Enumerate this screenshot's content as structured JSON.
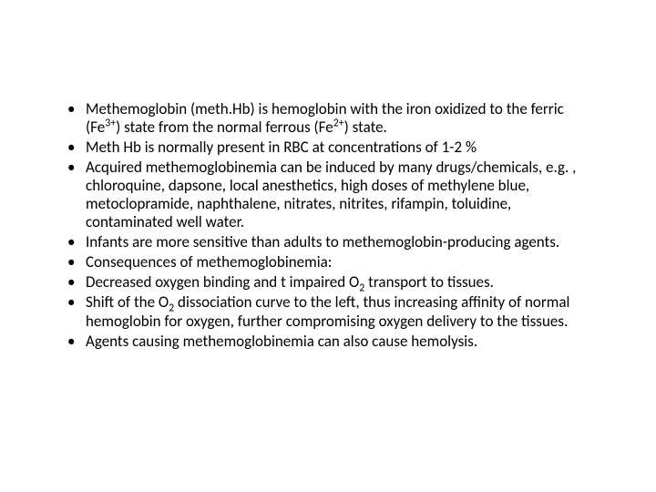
{
  "slide": {
    "background_color": "#ffffff",
    "text_color": "#000000",
    "font_family": "Calibri",
    "font_size_pt": 17,
    "bullets": [
      "Methemoglobin (meth.Hb) is hemoglobin with the iron oxidized to the ferric (Fe<sup>3+</sup>) state from the normal ferrous (Fe<sup>2+</sup>) state.",
      "Meth Hb is  normally present in RBC at concentrations of 1-2 %",
      "Acquired methemoglobinemia can be induced by many drugs/chemicals, e.g. , chloroquine, dapsone, local anesthetics, high doses of methylene blue, metoclopramide, naphthalene, nitrates, nitrites, rifampin, toluidine, contaminated well water.",
      "Infants are more sensitive than adults to methemoglobin-producing agents.",
      "Consequences of methemoglobinemia:",
      "Decreased oxygen binding and t impaired O<sub>2</sub> transport to tissues.",
      "Shift of the O<sub>2</sub> dissociation curve to the left, thus increasing affinity of normal hemoglobin for oxygen, further compromising oxygen delivery to the tissues.",
      "Agents causing methemoglobinemia can also cause hemolysis."
    ]
  }
}
